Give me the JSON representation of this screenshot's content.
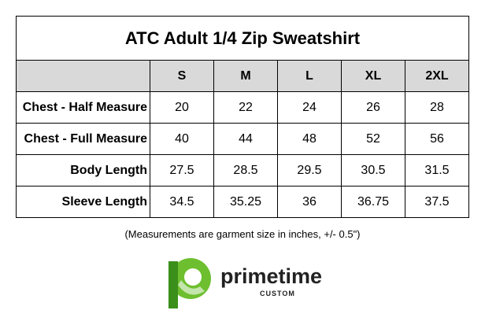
{
  "title": "ATC Adult 1/4 Zip Sweatshirt",
  "table": {
    "columns": [
      "S",
      "M",
      "L",
      "XL",
      "2XL"
    ],
    "rows": [
      {
        "label": "Chest - Half Measure",
        "values": [
          20,
          22,
          24,
          26,
          28
        ]
      },
      {
        "label": "Chest - Full Measure",
        "values": [
          40,
          44,
          48,
          52,
          56
        ]
      },
      {
        "label": "Body Length",
        "values": [
          27.5,
          28.5,
          29.5,
          30.5,
          31.5
        ]
      },
      {
        "label": "Sleeve Length",
        "values": [
          34.5,
          35.25,
          36,
          36.75,
          37.5
        ]
      }
    ]
  },
  "footnote": "(Measurements are garment size in inches, +/- 0.5\")",
  "logo": {
    "name": "primetime",
    "tagline": "CUSTOM"
  }
}
